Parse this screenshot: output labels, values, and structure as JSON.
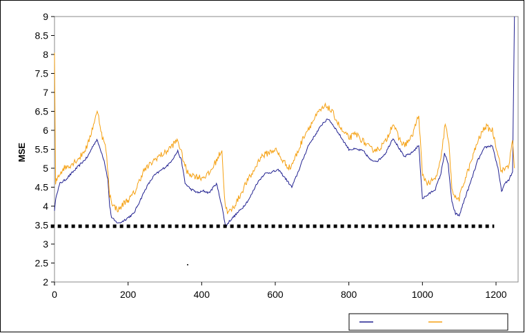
{
  "chart_data": {
    "type": "line",
    "title": "",
    "xlabel": "",
    "ylabel": "MSE",
    "xlim": [
      0,
      1260
    ],
    "ylim": [
      2,
      9
    ],
    "x_ticks": [
      0,
      200,
      400,
      600,
      800,
      1000,
      1200
    ],
    "y_ticks": [
      2,
      2.5,
      3,
      3.5,
      4,
      4.5,
      5,
      5.5,
      6,
      6.5,
      7,
      7.5,
      8,
      8.5,
      9
    ],
    "y_tick_labels": [
      "2",
      "2.5",
      "3",
      "3.5",
      "4",
      "4.5",
      "5",
      "5.5",
      "6",
      "6.5",
      "7",
      "7.5",
      "8",
      "8.5",
      "9"
    ],
    "grid": false,
    "legend": "bottom-right",
    "series": [
      {
        "color": "#1f1f8f",
        "points": [
          [
            0,
            3.9
          ],
          [
            5,
            4.3
          ],
          [
            15,
            4.6
          ],
          [
            30,
            4.7
          ],
          [
            50,
            4.9
          ],
          [
            70,
            5.1
          ],
          [
            90,
            5.3
          ],
          [
            105,
            5.6
          ],
          [
            115,
            5.75
          ],
          [
            125,
            5.5
          ],
          [
            135,
            5.2
          ],
          [
            145,
            4.7
          ],
          [
            150,
            4.0
          ],
          [
            155,
            3.7
          ],
          [
            165,
            3.6
          ],
          [
            175,
            3.55
          ],
          [
            185,
            3.6
          ],
          [
            200,
            3.7
          ],
          [
            215,
            3.8
          ],
          [
            230,
            4.1
          ],
          [
            250,
            4.5
          ],
          [
            270,
            4.8
          ],
          [
            290,
            4.95
          ],
          [
            310,
            5.1
          ],
          [
            325,
            5.3
          ],
          [
            335,
            5.45
          ],
          [
            345,
            5.2
          ],
          [
            355,
            4.6
          ],
          [
            370,
            4.45
          ],
          [
            390,
            4.35
          ],
          [
            405,
            4.4
          ],
          [
            420,
            4.35
          ],
          [
            440,
            4.6
          ],
          [
            455,
            4.0
          ],
          [
            465,
            3.45
          ],
          [
            475,
            3.6
          ],
          [
            490,
            3.75
          ],
          [
            510,
            3.95
          ],
          [
            530,
            4.2
          ],
          [
            550,
            4.6
          ],
          [
            570,
            4.85
          ],
          [
            590,
            4.9
          ],
          [
            610,
            4.95
          ],
          [
            630,
            4.7
          ],
          [
            645,
            4.5
          ],
          [
            660,
            4.85
          ],
          [
            670,
            5.1
          ],
          [
            690,
            5.6
          ],
          [
            710,
            5.9
          ],
          [
            730,
            6.2
          ],
          [
            745,
            6.3
          ],
          [
            760,
            6.1
          ],
          [
            780,
            5.8
          ],
          [
            800,
            5.5
          ],
          [
            820,
            5.5
          ],
          [
            840,
            5.45
          ],
          [
            860,
            5.2
          ],
          [
            880,
            5.2
          ],
          [
            900,
            5.4
          ],
          [
            920,
            5.8
          ],
          [
            935,
            5.55
          ],
          [
            950,
            5.3
          ],
          [
            970,
            5.4
          ],
          [
            990,
            5.6
          ],
          [
            1000,
            4.2
          ],
          [
            1015,
            4.3
          ],
          [
            1035,
            4.45
          ],
          [
            1050,
            4.85
          ],
          [
            1060,
            5.4
          ],
          [
            1070,
            5.1
          ],
          [
            1080,
            4.1
          ],
          [
            1090,
            3.8
          ],
          [
            1100,
            3.75
          ],
          [
            1115,
            4.2
          ],
          [
            1130,
            4.6
          ],
          [
            1150,
            5.2
          ],
          [
            1170,
            5.55
          ],
          [
            1190,
            5.6
          ],
          [
            1205,
            5.0
          ],
          [
            1215,
            4.4
          ],
          [
            1225,
            4.6
          ],
          [
            1235,
            4.7
          ],
          [
            1245,
            4.9
          ],
          [
            1250,
            9.0
          ]
        ]
      },
      {
        "color": "#f5a011",
        "points": [
          [
            0,
            8.0
          ],
          [
            3,
            4.6
          ],
          [
            10,
            4.8
          ],
          [
            25,
            5.0
          ],
          [
            45,
            5.1
          ],
          [
            70,
            5.3
          ],
          [
            90,
            5.6
          ],
          [
            110,
            6.3
          ],
          [
            118,
            6.5
          ],
          [
            128,
            5.9
          ],
          [
            140,
            5.5
          ],
          [
            150,
            4.3
          ],
          [
            160,
            4.0
          ],
          [
            175,
            3.9
          ],
          [
            190,
            4.1
          ],
          [
            205,
            4.2
          ],
          [
            220,
            4.4
          ],
          [
            240,
            4.9
          ],
          [
            260,
            5.1
          ],
          [
            280,
            5.3
          ],
          [
            300,
            5.4
          ],
          [
            320,
            5.6
          ],
          [
            335,
            5.75
          ],
          [
            345,
            5.4
          ],
          [
            360,
            4.9
          ],
          [
            380,
            4.8
          ],
          [
            400,
            4.75
          ],
          [
            420,
            4.85
          ],
          [
            440,
            5.2
          ],
          [
            455,
            5.5
          ],
          [
            462,
            4.2
          ],
          [
            470,
            3.8
          ],
          [
            485,
            3.95
          ],
          [
            500,
            4.2
          ],
          [
            520,
            4.6
          ],
          [
            540,
            4.9
          ],
          [
            560,
            5.3
          ],
          [
            580,
            5.4
          ],
          [
            600,
            5.5
          ],
          [
            620,
            5.2
          ],
          [
            640,
            5.0
          ],
          [
            660,
            5.4
          ],
          [
            680,
            5.9
          ],
          [
            700,
            6.2
          ],
          [
            720,
            6.5
          ],
          [
            740,
            6.65
          ],
          [
            760,
            6.4
          ],
          [
            780,
            6.0
          ],
          [
            800,
            5.8
          ],
          [
            820,
            5.9
          ],
          [
            840,
            5.7
          ],
          [
            860,
            5.5
          ],
          [
            880,
            5.5
          ],
          [
            900,
            5.7
          ],
          [
            920,
            6.2
          ],
          [
            935,
            5.8
          ],
          [
            950,
            5.6
          ],
          [
            970,
            5.8
          ],
          [
            990,
            6.4
          ],
          [
            1000,
            4.8
          ],
          [
            1015,
            4.6
          ],
          [
            1035,
            4.7
          ],
          [
            1050,
            5.2
          ],
          [
            1062,
            6.2
          ],
          [
            1072,
            5.6
          ],
          [
            1080,
            4.5
          ],
          [
            1090,
            4.2
          ],
          [
            1100,
            4.2
          ],
          [
            1115,
            4.7
          ],
          [
            1130,
            5.1
          ],
          [
            1150,
            5.7
          ],
          [
            1170,
            6.1
          ],
          [
            1190,
            6.0
          ],
          [
            1205,
            5.4
          ],
          [
            1215,
            4.9
          ],
          [
            1225,
            5.0
          ],
          [
            1235,
            5.1
          ],
          [
            1245,
            5.7
          ],
          [
            1250,
            5.0
          ]
        ]
      },
      {
        "color": "#000000",
        "style": "dotted",
        "points": [
          [
            -10,
            3.47
          ],
          [
            1195,
            3.47
          ]
        ]
      }
    ]
  },
  "legend": {
    "entries": [
      {
        "color": "#1f1f8f",
        "label": ""
      },
      {
        "color": "#f5a011",
        "label": ""
      }
    ]
  }
}
